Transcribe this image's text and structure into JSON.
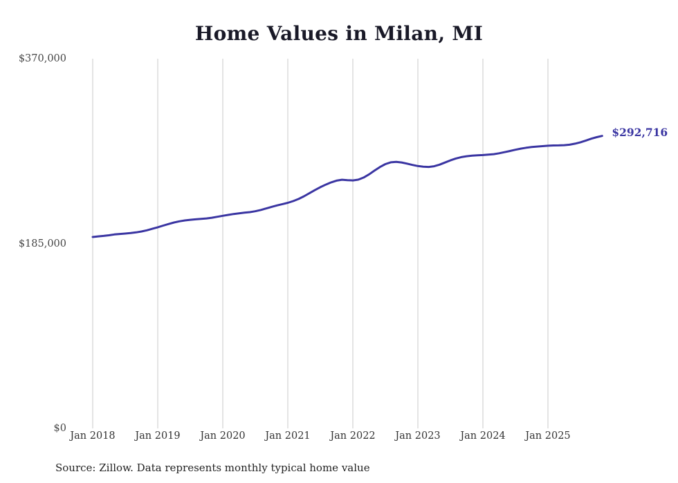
{
  "title": "Home Values in Milan, MI",
  "source_note": "Source: Zillow. Data represents monthly typical home value",
  "colors": {
    "line": "#3a35a2",
    "end_label": "#3a35a2",
    "gridline": "#c9c9c9",
    "axis_text": "#454545",
    "title_text": "#191927"
  },
  "y_axis": {
    "ticks": [
      {
        "value": 370000,
        "label": "$370,000"
      },
      {
        "value": 185000,
        "label": "$185,000"
      },
      {
        "value": 0,
        "label": "$0"
      }
    ]
  },
  "x_axis": {
    "tick_labels": [
      "Jan 2018",
      "Jan 2019",
      "Jan 2020",
      "Jan 2021",
      "Jan 2022",
      "Jan 2023",
      "Jan 2024",
      "Jan 2025"
    ]
  },
  "chart_data": {
    "type": "line",
    "title": "Home Values in Milan, MI",
    "xlabel": "",
    "ylabel": "",
    "ylim": [
      0,
      370000
    ],
    "x_start": "2018-01",
    "x_end": "2025-11",
    "x_frequency": "monthly",
    "grid": "vertical-only",
    "legend": "none",
    "final_value": 292716,
    "final_value_label": "$292,716",
    "series": [
      {
        "name": "Typical home value",
        "values": [
          191600,
          192200,
          192700,
          193300,
          194100,
          194600,
          195000,
          195500,
          196200,
          197100,
          198300,
          199800,
          201300,
          203000,
          204600,
          206100,
          207300,
          208200,
          208800,
          209300,
          209700,
          210200,
          210900,
          211800,
          212800,
          213700,
          214600,
          215300,
          215900,
          216500,
          217400,
          218600,
          220100,
          221700,
          223200,
          224500,
          225800,
          227500,
          229700,
          232400,
          235400,
          238500,
          241400,
          244000,
          246300,
          248000,
          248900,
          248500,
          248200,
          249000,
          251100,
          254300,
          258000,
          261600,
          264500,
          266300,
          266800,
          266200,
          265000,
          263700,
          262600,
          261900,
          261700,
          262400,
          264000,
          266100,
          268300,
          270100,
          271500,
          272400,
          273000,
          273300,
          273600,
          274000,
          274500,
          275400,
          276500,
          277700,
          278900,
          280000,
          280900,
          281600,
          282100,
          282500,
          282900,
          283200,
          283300,
          283500,
          284000,
          285000,
          286400,
          288100,
          290000,
          291500,
          292716
        ]
      }
    ]
  }
}
